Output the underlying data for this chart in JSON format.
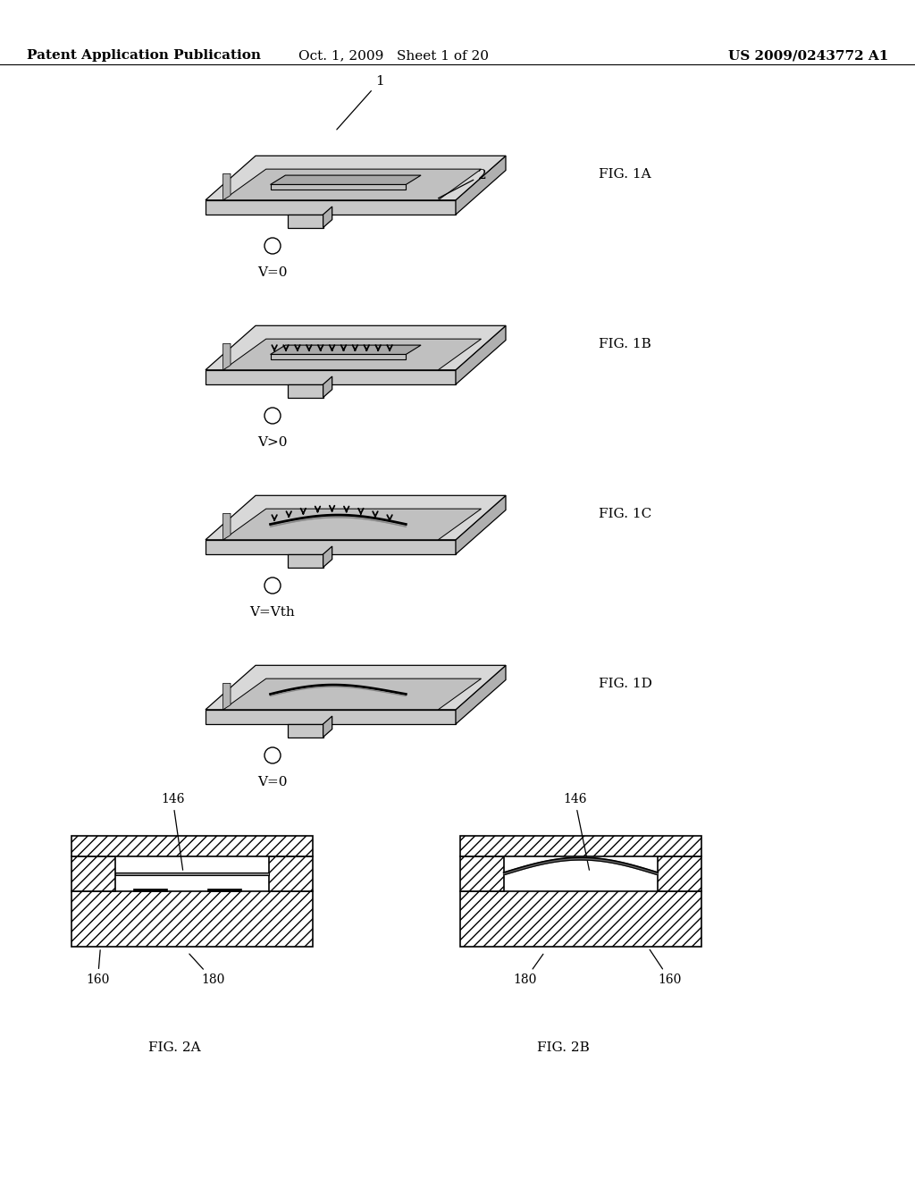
{
  "bg_color": "#ffffff",
  "header_left": "Patent Application Publication",
  "header_mid": "Oct. 1, 2009   Sheet 1 of 20",
  "header_right": "US 2009/0243772 A1",
  "header_fontsize": 11,
  "fig1a_label": "FIG. 1A",
  "fig1b_label": "FIG. 1B",
  "fig1c_label": "FIG. 1C",
  "fig1d_label": "FIG. 1D",
  "fig2a_label": "FIG. 2A",
  "fig2b_label": "FIG. 2B",
  "voltage_labels": [
    "V=0",
    "V>0",
    "V=Vth",
    "V=0"
  ]
}
